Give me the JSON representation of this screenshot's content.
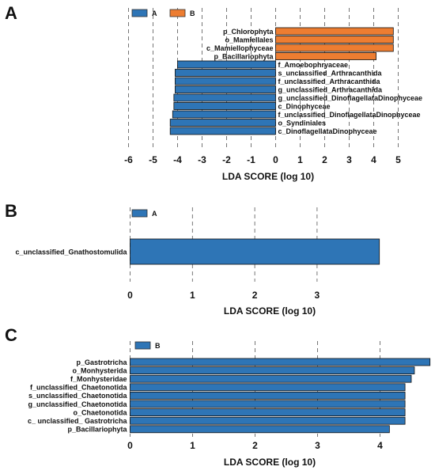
{
  "chart_data": [
    {
      "panel": "A",
      "type": "bar",
      "orientation": "horizontal",
      "legend": [
        {
          "name": "A",
          "color": "#2e75b6"
        },
        {
          "name": "B",
          "color": "#ed7d31"
        }
      ],
      "categories": [
        "p_Chlorophyta",
        "o_Mamiellales",
        "c_Mamiellophyceae",
        "p_Bacillariophyta",
        "f_Amoebophryaceae",
        "s_unclassified_Arthracanthida",
        "f_unclassified_Arthracanthida",
        "g_unclassified_Arthracanthida",
        "g_unclassified_DinoflagellataDinophyceae",
        "c_Dinophyceae",
        "f_unclassified_DinoflagellataDinophyceae",
        "o_Syndiniales",
        "c_DinoflagellataDinophyceae"
      ],
      "values": [
        4.8,
        4.8,
        4.8,
        4.1,
        -4.0,
        -4.1,
        -4.1,
        -4.1,
        -4.15,
        -4.15,
        -4.2,
        -4.3,
        -4.3
      ],
      "groups": [
        "B",
        "B",
        "B",
        "B",
        "A",
        "A",
        "A",
        "A",
        "A",
        "A",
        "A",
        "A",
        "A"
      ],
      "xticks": [
        "-6",
        "-5",
        "-4",
        "-3",
        "-2",
        "-1",
        "0",
        "1",
        "2",
        "3",
        "4",
        "5"
      ],
      "xlim": [
        -6,
        5
      ],
      "xlabel": "LDA SCORE (log 10)",
      "grid": "vertical dashed"
    },
    {
      "panel": "B",
      "type": "bar",
      "orientation": "horizontal",
      "legend": [
        {
          "name": "A",
          "color": "#2e75b6"
        }
      ],
      "categories": [
        "c_unclassified_Gnathostomulida"
      ],
      "values": [
        4.0
      ],
      "groups": [
        "A"
      ],
      "xticks": [
        "0",
        "1",
        "2",
        "3"
      ],
      "xlim": [
        0,
        4
      ],
      "xlabel": "LDA SCORE (log 10)",
      "grid": "vertical dashed"
    },
    {
      "panel": "C",
      "type": "bar",
      "orientation": "horizontal",
      "legend": [
        {
          "name": "B",
          "color": "#2e75b6"
        }
      ],
      "categories": [
        "p_Gastrotricha",
        "o_Monhysterida",
        "f_Monhysteridae",
        "f_unclassified_Chaetonotida",
        "s_unclassified_Chaetonotida",
        "g_unclassified_Chaetonotida",
        "o_Chaetonotida",
        "c_ unclassified_ Gastrotricha",
        "p_Bacillariophyta"
      ],
      "values": [
        4.8,
        4.55,
        4.5,
        4.4,
        4.4,
        4.4,
        4.4,
        4.4,
        4.15
      ],
      "groups": [
        "B",
        "B",
        "B",
        "B",
        "B",
        "B",
        "B",
        "B",
        "B"
      ],
      "xticks": [
        "0",
        "1",
        "2",
        "3",
        "4"
      ],
      "xlim": [
        0,
        4.8
      ],
      "xlabel": "LDA SCORE (log 10)",
      "grid": "vertical dashed"
    }
  ]
}
